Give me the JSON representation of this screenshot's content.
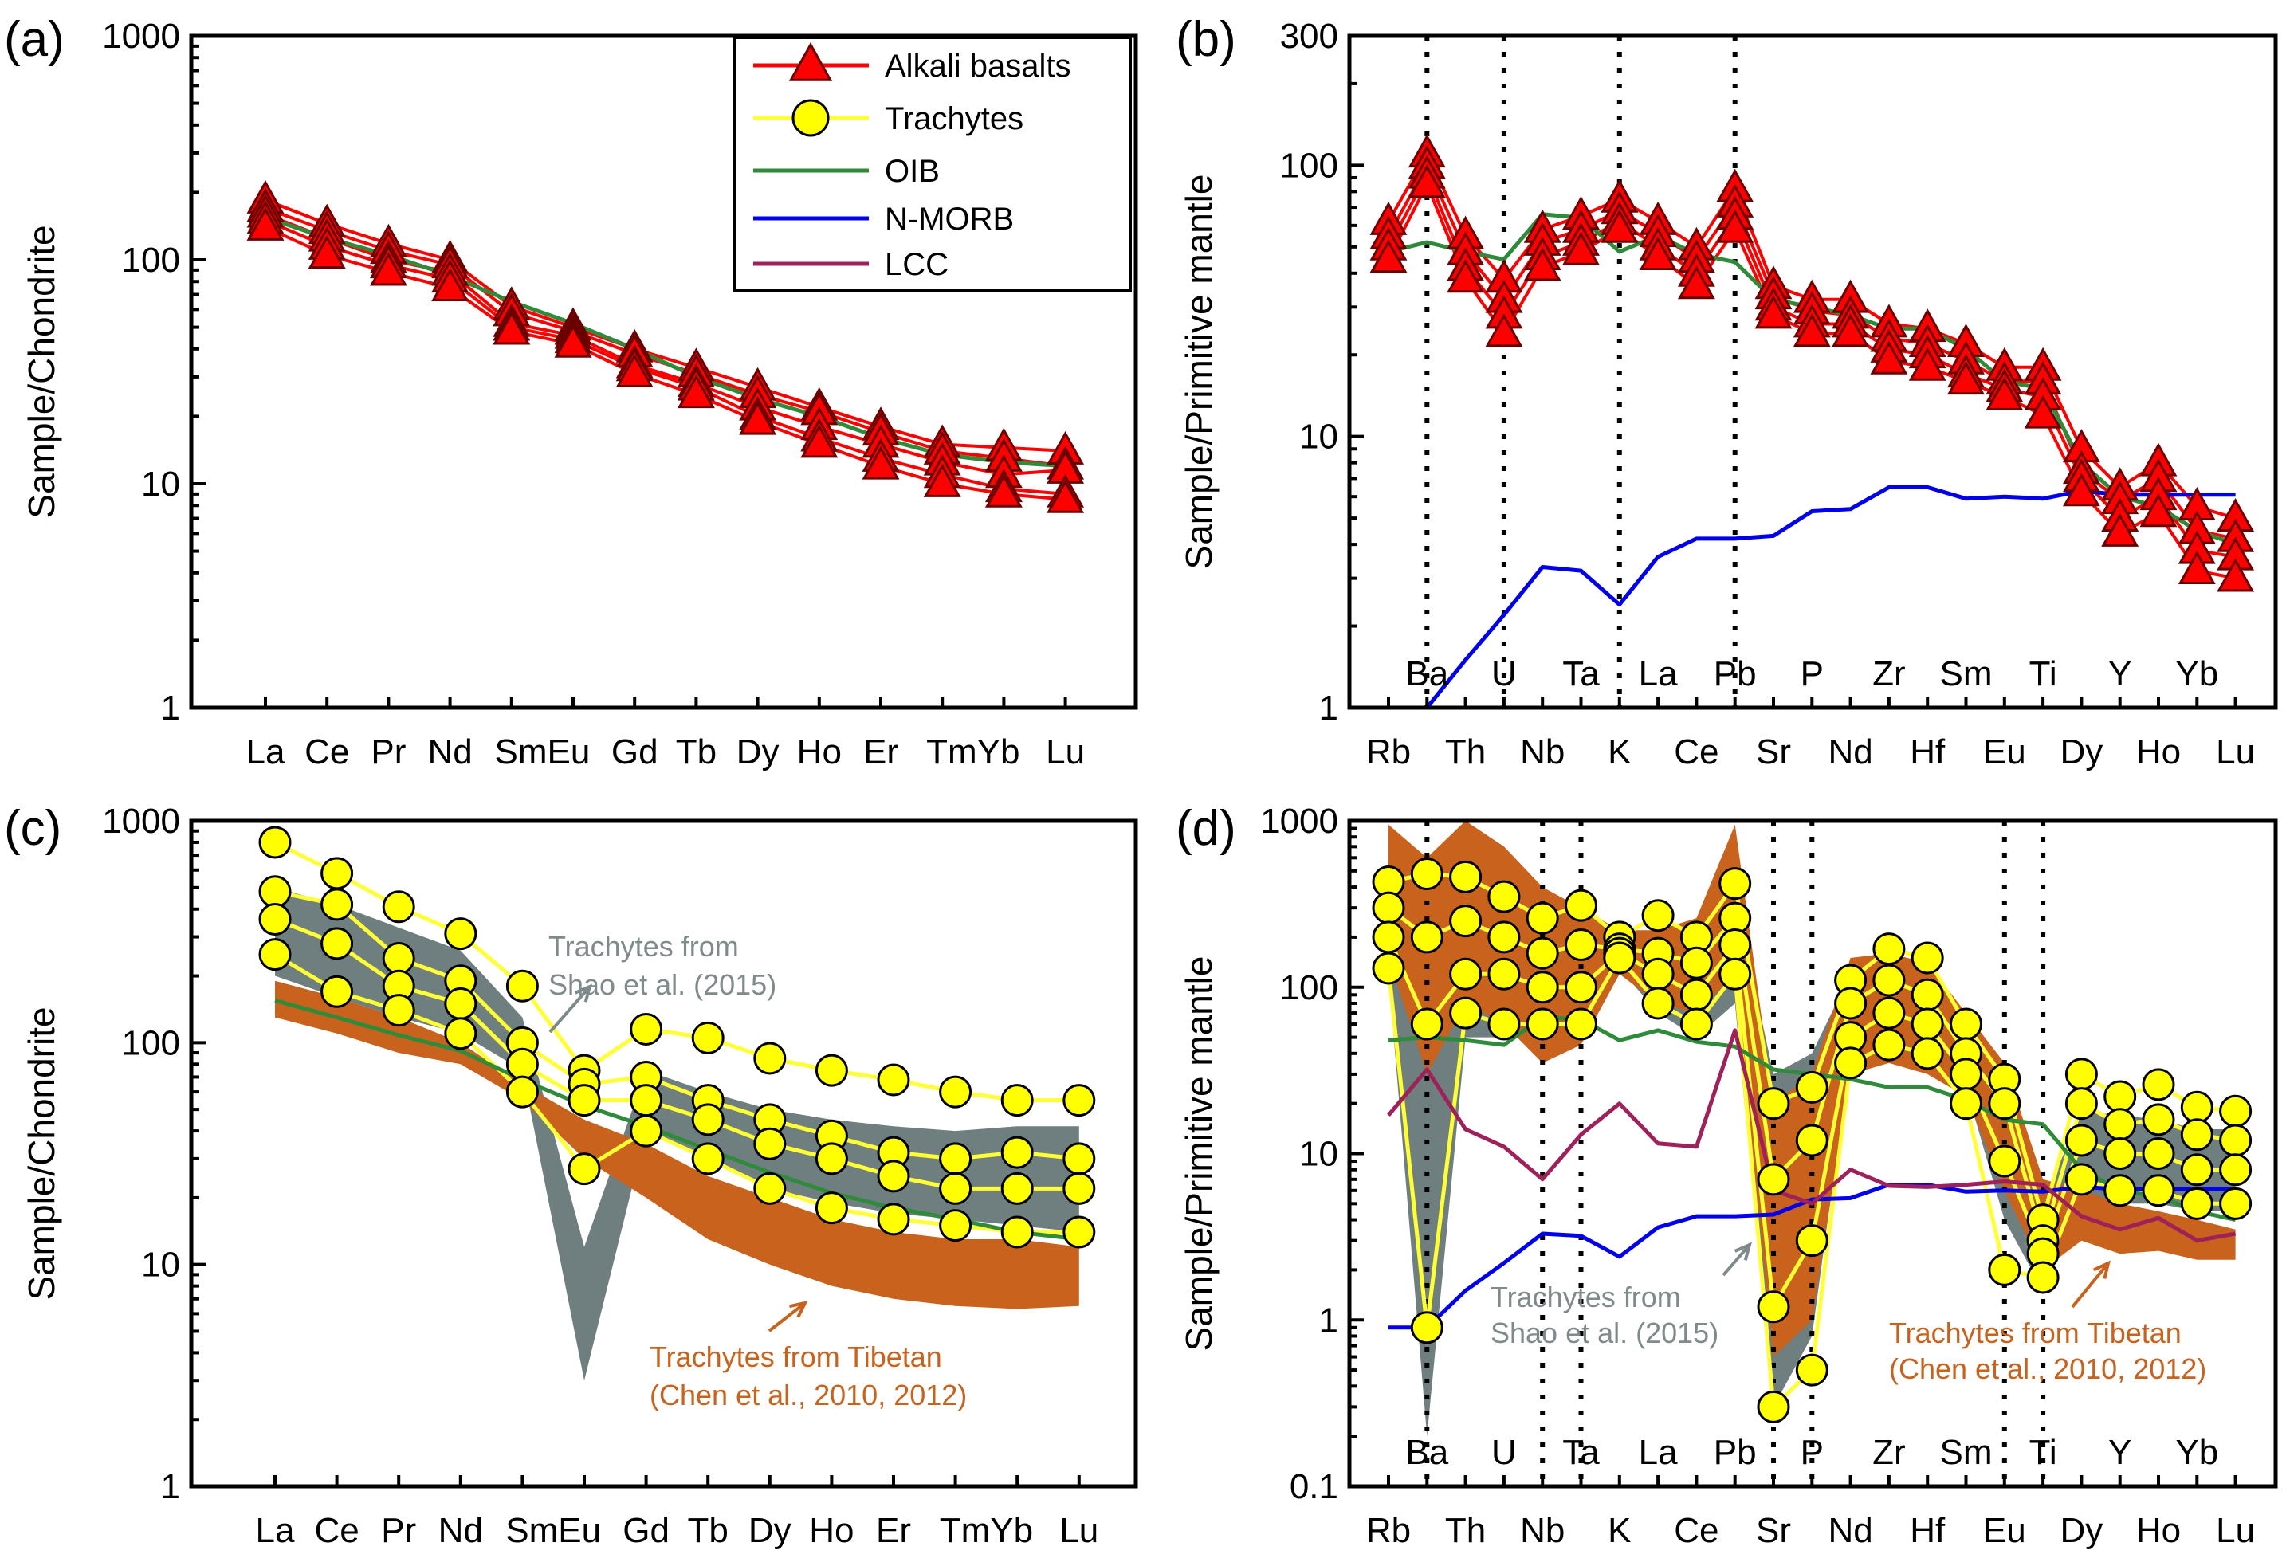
{
  "colors": {
    "alkali": "#ff0000",
    "alkali_stroke": "#6a0000",
    "trachyte_fill": "#ffff00",
    "trachyte_line": "#ffff33",
    "trachyte_stroke": "#000000",
    "oib": "#2e8b3a",
    "nmorb": "#0000ee",
    "lcc": "#a0205a",
    "shao_band": "#6f7f7f",
    "tibet_band": "#c8621c",
    "shao_text": "#7f8a8a",
    "tibet_text": "#c8621c"
  },
  "legend": {
    "alkali": "Alkali basalts",
    "trachytes": "Trachytes",
    "oib": "OIB",
    "nmorb": "N-MORB",
    "lcc": "LCC"
  },
  "chart_data": [
    {
      "panel": "(a)",
      "type": "line",
      "yscale": "log",
      "ylabel": "Sample/Chondrite",
      "ylim": [
        1,
        1000
      ],
      "yticks": [
        "1",
        "10",
        "100",
        "1000"
      ],
      "categories": [
        "La",
        "Ce",
        "Pr",
        "Nd",
        "Sm",
        "Eu",
        "Gd",
        "Tb",
        "Dy",
        "Ho",
        "Er",
        "Tm",
        "Yb",
        "Lu"
      ],
      "category_labels": [
        "La",
        "Ce",
        "Pr",
        "Nd",
        "SmEu",
        "Gd",
        "Tb",
        "Dy",
        "Ho",
        "Er",
        "TmYb",
        "Lu"
      ],
      "series": [
        {
          "group": "alkali",
          "values": [
            185,
            145,
            118,
            100,
            62,
            50,
            40,
            33,
            27,
            22,
            18,
            15,
            14.5,
            14
          ]
        },
        {
          "group": "alkali",
          "values": [
            170,
            135,
            110,
            95,
            58,
            48,
            38,
            31,
            25,
            21,
            17,
            14,
            13,
            12
          ]
        },
        {
          "group": "alkali",
          "values": [
            160,
            125,
            100,
            88,
            52,
            46,
            34,
            28,
            22,
            18,
            15,
            12.5,
            11,
            11.5
          ]
        },
        {
          "group": "alkali",
          "values": [
            150,
            115,
            95,
            82,
            50,
            44,
            33,
            27,
            20,
            16,
            13,
            11,
            9.5,
            9
          ]
        },
        {
          "group": "alkali",
          "values": [
            140,
            105,
            88,
            75,
            48,
            42,
            31,
            25,
            19,
            15,
            12,
            10,
            9,
            8.5
          ]
        },
        {
          "group": "oib",
          "values": [
            155,
            125,
            105,
            85,
            65,
            52,
            40,
            30,
            24,
            20,
            16,
            13.5,
            12.5,
            12
          ]
        }
      ]
    },
    {
      "panel": "(b)",
      "type": "line",
      "yscale": "log",
      "ylabel": "Sample/Primitive mantle",
      "ylim": [
        1,
        300
      ],
      "yticks": [
        "1",
        "10",
        "100",
        "300"
      ],
      "categories": [
        "Rb",
        "Ba",
        "Th",
        "U",
        "Nb",
        "Ta",
        "K",
        "La",
        "Ce",
        "Pb",
        "Sr",
        "P",
        "Nd",
        "Zr",
        "Hf",
        "Sm",
        "Eu",
        "Ti",
        "Dy",
        "Y",
        "Ho",
        "Yb",
        "Lu"
      ],
      "top_labels": [
        "Ba",
        "U",
        "Ta",
        "La",
        "Pb",
        "P",
        "Zr",
        "Sm",
        "Ti",
        "Y",
        "Yb"
      ],
      "bottom_labels": [
        "Rb",
        "Th",
        "Nb",
        "K",
        "Ce",
        "Sr",
        "Nd",
        "Hf",
        "Eu",
        "Dy",
        "Ho",
        "Lu"
      ],
      "dotted_at": [
        "Ba",
        "U",
        "K",
        "Pb"
      ],
      "series": [
        {
          "group": "alkali",
          "values": [
            62,
            110,
            55,
            38,
            58,
            65,
            75,
            62,
            50,
            82,
            36,
            32,
            32,
            26,
            25,
            22,
            18,
            18,
            9,
            6.5,
            8,
            5.5,
            5
          ]
        },
        {
          "group": "alkali",
          "values": [
            55,
            100,
            48,
            32,
            52,
            58,
            68,
            56,
            45,
            72,
            33,
            29,
            28,
            23,
            22,
            19,
            16,
            16,
            7.5,
            5.8,
            7,
            4.5,
            4.2
          ]
        },
        {
          "group": "alkali",
          "values": [
            50,
            92,
            42,
            28,
            46,
            52,
            62,
            50,
            40,
            65,
            30,
            26,
            26,
            21,
            20,
            17,
            15,
            14,
            7,
            5,
            6,
            3.8,
            3.6
          ]
        },
        {
          "group": "alkali",
          "values": [
            45,
            85,
            38,
            24,
            42,
            48,
            58,
            46,
            36,
            58,
            28,
            24,
            24,
            19,
            18,
            16,
            14,
            12,
            6.2,
            4.4,
            5.2,
            3.2,
            3
          ]
        },
        {
          "group": "oib",
          "values": [
            48,
            52,
            48,
            45,
            66,
            64,
            48,
            55,
            47,
            44,
            32,
            30,
            28,
            25,
            25,
            21,
            16,
            15,
            8,
            6,
            5.5,
            4.5,
            4
          ]
        },
        {
          "group": "nmorb",
          "values": [
            0.8,
            1.0,
            1.5,
            2.2,
            3.3,
            3.2,
            2.4,
            3.6,
            4.2,
            4.2,
            4.3,
            5.3,
            5.4,
            6.5,
            6.5,
            5.9,
            6.0,
            5.9,
            6.3,
            6.1,
            6.1,
            6.1,
            6.1
          ]
        }
      ]
    },
    {
      "panel": "(c)",
      "type": "line",
      "yscale": "log",
      "ylabel": "Sample/Chondrite",
      "ylim": [
        1,
        1000
      ],
      "yticks": [
        "1",
        "10",
        "100",
        "1000"
      ],
      "categories": [
        "La",
        "Ce",
        "Pr",
        "Nd",
        "Sm",
        "Eu",
        "Gd",
        "Tb",
        "Dy",
        "Ho",
        "Er",
        "Tm",
        "Yb",
        "Lu"
      ],
      "category_labels": [
        "La",
        "Ce",
        "Pr",
        "Nd",
        "SmEu",
        "Gd",
        "Tb",
        "Dy",
        "Ho",
        "Er",
        "TmYb",
        "Lu"
      ],
      "annotations": [
        {
          "text": "Trachytes from",
          "color": "shao"
        },
        {
          "text": "Shao et al. (2015)",
          "color": "shao"
        },
        {
          "text": "Trachytes from Tibetan",
          "color": "tibet"
        },
        {
          "text": "(Chen et al., 2010, 2012)",
          "color": "tibet"
        }
      ],
      "bands": [
        {
          "name": "shao",
          "upper": [
            500,
            420,
            330,
            260,
            130,
            12,
            75,
            60,
            50,
            45,
            42,
            40,
            42,
            42
          ],
          "lower": [
            200,
            160,
            130,
            110,
            75,
            3,
            40,
            30,
            22,
            19,
            17,
            16,
            15,
            14
          ]
        },
        {
          "name": "tibet",
          "upper": [
            190,
            160,
            130,
            100,
            65,
            45,
            35,
            25,
            20,
            16,
            14,
            13,
            13,
            12
          ],
          "lower": [
            130,
            110,
            90,
            80,
            55,
            30,
            20,
            13,
            10,
            8,
            7,
            6.5,
            6.3,
            6.5
          ]
        }
      ],
      "series": [
        {
          "group": "trachyte",
          "values": [
            800,
            580,
            410,
            310,
            180,
            75,
            115,
            105,
            85,
            75,
            68,
            60,
            55,
            55
          ]
        },
        {
          "group": "trachyte",
          "values": [
            480,
            420,
            240,
            190,
            100,
            65,
            70,
            55,
            45,
            38,
            32,
            30,
            32,
            30
          ]
        },
        {
          "group": "trachyte",
          "values": [
            360,
            280,
            180,
            150,
            80,
            55,
            55,
            45,
            35,
            30,
            25,
            22,
            22,
            22
          ]
        },
        {
          "group": "trachyte",
          "values": [
            250,
            170,
            140,
            110,
            60,
            27,
            40,
            30,
            22,
            18,
            16,
            15,
            14,
            14
          ]
        },
        {
          "group": "oib",
          "values": [
            155,
            130,
            108,
            92,
            68,
            52,
            42,
            33,
            26,
            21,
            18,
            16,
            14,
            13
          ]
        }
      ]
    },
    {
      "panel": "(d)",
      "type": "line",
      "yscale": "log",
      "ylabel": "Sample/Primitive mantle",
      "ylim": [
        0.1,
        1000
      ],
      "yticks": [
        "0.1",
        "1",
        "10",
        "100",
        "1000"
      ],
      "categories": [
        "Rb",
        "Ba",
        "Th",
        "U",
        "Nb",
        "Ta",
        "K",
        "La",
        "Ce",
        "Pb",
        "Sr",
        "P",
        "Nd",
        "Zr",
        "Hf",
        "Sm",
        "Eu",
        "Ti",
        "Dy",
        "Y",
        "Ho",
        "Yb",
        "Lu"
      ],
      "top_labels": [
        "Ba",
        "U",
        "Ta",
        "La",
        "Pb",
        "P",
        "Zr",
        "Sm",
        "Ti",
        "Y",
        "Yb"
      ],
      "bottom_labels": [
        "Rb",
        "Th",
        "Nb",
        "K",
        "Ce",
        "Sr",
        "Nd",
        "Hf",
        "Eu",
        "Dy",
        "Ho",
        "Lu"
      ],
      "dotted_at": [
        "Ba",
        "Nb",
        "Ta",
        "Sr",
        "P",
        "Eu",
        "Ti"
      ],
      "annotations": [
        {
          "text": "Trachytes from",
          "color": "shao"
        },
        {
          "text": "Shao et al. (2015)",
          "color": "shao"
        },
        {
          "text": "Trachytes from Tibetan",
          "color": "tibet"
        },
        {
          "text": "(Chen et al., 2010, 2012)",
          "color": "tibet"
        }
      ],
      "bands": [
        {
          "name": "shao",
          "upper": [
            500,
            50,
            450,
            330,
            280,
            320,
            200,
            190,
            180,
            350,
            30,
            40,
            120,
            150,
            140,
            60,
            30,
            5,
            18,
            17,
            16,
            14,
            14
          ],
          "lower": [
            120,
            0.2,
            50,
            50,
            50,
            50,
            130,
            70,
            50,
            80,
            0.3,
            0.8,
            40,
            40,
            35,
            25,
            4,
            1.5,
            5,
            5,
            5,
            4.5,
            4.5
          ]
        },
        {
          "name": "tibet",
          "upper": [
            950,
            600,
            1000,
            700,
            400,
            300,
            220,
            220,
            260,
            950,
            20,
            30,
            150,
            160,
            140,
            70,
            35,
            7,
            6,
            5,
            4.5,
            4,
            3.5
          ],
          "lower": [
            150,
            30,
            80,
            60,
            35,
            45,
            120,
            80,
            70,
            120,
            0.6,
            1,
            30,
            35,
            30,
            22,
            6,
            2,
            3,
            2.5,
            2.6,
            2.3,
            2.3
          ]
        }
      ],
      "series": [
        {
          "group": "trachyte",
          "values": [
            430,
            480,
            460,
            350,
            260,
            310,
            200,
            270,
            200,
            420,
            20,
            25,
            110,
            170,
            150,
            60,
            28,
            4,
            30,
            22,
            26,
            19,
            18
          ]
        },
        {
          "group": "trachyte",
          "values": [
            300,
            200,
            250,
            200,
            160,
            180,
            170,
            160,
            140,
            260,
            7,
            12,
            80,
            110,
            90,
            40,
            20,
            3,
            20,
            15,
            16,
            13,
            12
          ]
        },
        {
          "group": "trachyte",
          "values": [
            200,
            60,
            120,
            120,
            100,
            100,
            160,
            120,
            90,
            180,
            1.2,
            3,
            50,
            70,
            60,
            30,
            9,
            2.5,
            12,
            10,
            10,
            8,
            8
          ]
        },
        {
          "group": "trachyte",
          "values": [
            130,
            0.9,
            70,
            60,
            60,
            60,
            150,
            80,
            60,
            120,
            0.3,
            0.5,
            35,
            45,
            40,
            20,
            2,
            1.8,
            7,
            6,
            6,
            5,
            5
          ]
        },
        {
          "group": "oib",
          "values": [
            48,
            50,
            48,
            45,
            66,
            64,
            48,
            55,
            47,
            44,
            32,
            30,
            28,
            25,
            25,
            21,
            16,
            15,
            8,
            6,
            5.5,
            4.5,
            4
          ]
        },
        {
          "group": "nmorb",
          "values": [
            0.9,
            0.9,
            1.5,
            2.2,
            3.3,
            3.2,
            2.4,
            3.6,
            4.2,
            4.2,
            4.3,
            5.3,
            5.4,
            6.5,
            6.5,
            5.9,
            6.0,
            5.9,
            6.3,
            6.1,
            6.1,
            6.1,
            6.1
          ]
        },
        {
          "group": "lcc",
          "values": [
            17,
            32,
            14,
            11,
            7,
            13,
            20,
            11.5,
            11,
            55,
            6,
            5,
            8,
            6.4,
            6.3,
            6.5,
            6.8,
            6.5,
            4.2,
            3.5,
            4.1,
            3.0,
            3.3
          ]
        }
      ]
    }
  ]
}
